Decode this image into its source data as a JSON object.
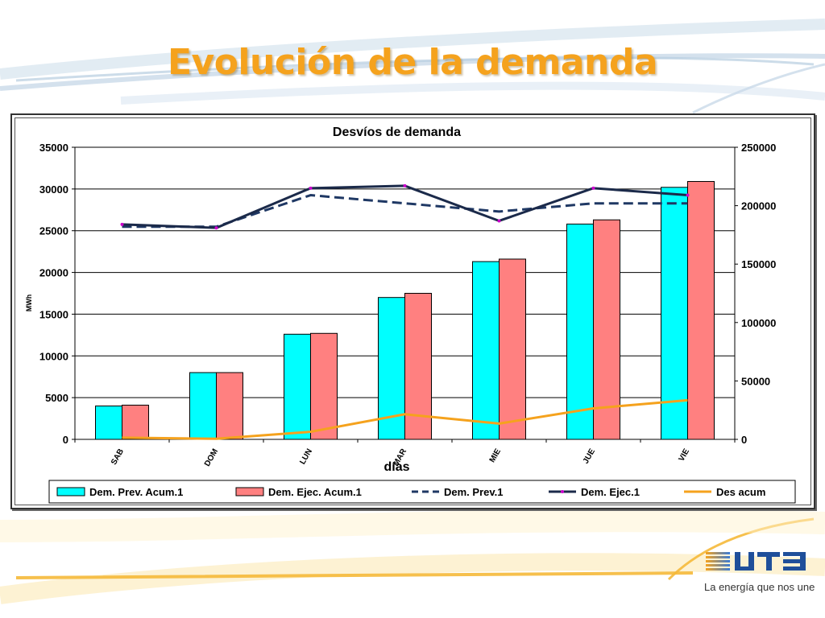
{
  "slide": {
    "title": "Evolución de la demanda",
    "brand_name": "UTE",
    "brand_tagline": "La energía que nos une",
    "accent_color": "#f5a21d"
  },
  "chart_data": {
    "type": "bar",
    "title": "Desvíos de demanda",
    "xlabel": "días",
    "ylabel": "MWh",
    "categories": [
      "SAB",
      "DOM",
      "LUN",
      "MAR",
      "MIE",
      "JUE",
      "VIE"
    ],
    "ylim": [
      0,
      35000
    ],
    "yticks": [
      0,
      5000,
      10000,
      15000,
      20000,
      25000,
      30000,
      35000
    ],
    "y2lim": [
      0,
      250000
    ],
    "y2ticks": [
      0,
      50000,
      100000,
      150000,
      200000,
      250000
    ],
    "grid": true,
    "legend_position": "bottom",
    "series": [
      {
        "name": "Dem. Prev. Acum.1",
        "kind": "bar",
        "axis": "left",
        "color": "#00ffff",
        "values": [
          4000,
          8000,
          12600,
          17000,
          21300,
          25800,
          30200
        ]
      },
      {
        "name": "Dem. Ejec. Acum.1",
        "kind": "bar",
        "axis": "left",
        "color": "#ff8080",
        "values": [
          4100,
          8000,
          12700,
          17500,
          21600,
          26300,
          30900
        ]
      },
      {
        "name": "Dem. Prev.1",
        "kind": "line",
        "style": "dashed",
        "axis": "right",
        "color": "#1f3864",
        "values": [
          182000,
          182000,
          209000,
          202000,
          195000,
          202000,
          202000
        ]
      },
      {
        "name": "Dem. Ejec.1",
        "kind": "line",
        "style": "solid",
        "axis": "right",
        "color": "#1b2a4a",
        "marker_color": "#cc00cc",
        "values": [
          184000,
          181000,
          215000,
          217000,
          187000,
          215000,
          209000
        ]
      },
      {
        "name": "Des acum",
        "kind": "line",
        "style": "solid",
        "axis": "right",
        "color": "#f5a21d",
        "values": [
          1500,
          500,
          6500,
          21500,
          13500,
          26500,
          33500
        ]
      }
    ]
  }
}
